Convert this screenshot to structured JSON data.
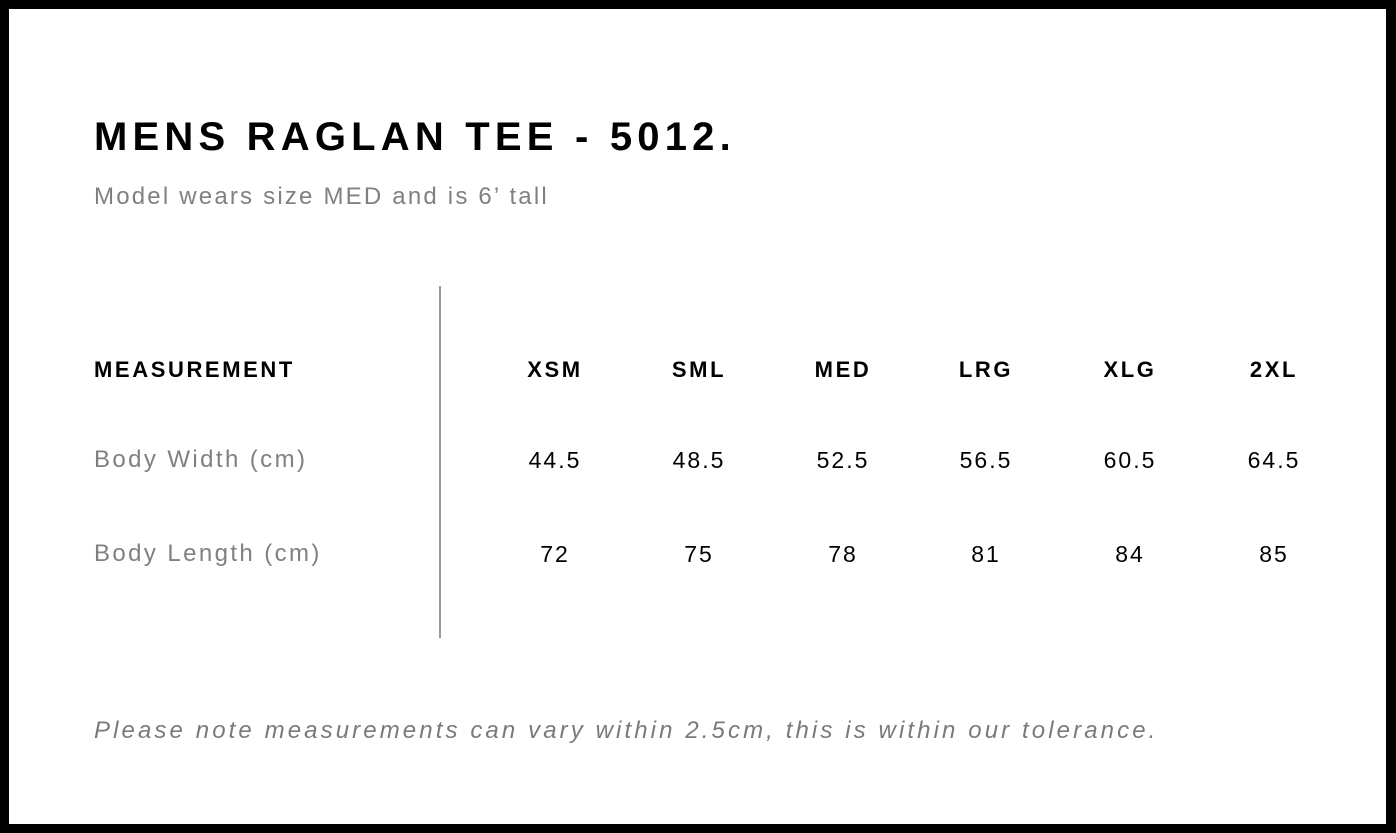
{
  "title": "MENS RAGLAN TEE - 5012.",
  "subtitle": "Model wears size MED and is 6’ tall",
  "table": {
    "header_label": "MEASUREMENT",
    "sizes": [
      "XSM",
      "SML",
      "MED",
      "LRG",
      "XLG",
      "2XL"
    ],
    "rows": [
      {
        "label": "Body Width (cm)",
        "values": [
          "44.5",
          "48.5",
          "52.5",
          "56.5",
          "60.5",
          "64.5"
        ]
      },
      {
        "label": "Body Length (cm)",
        "values": [
          "72",
          "75",
          "78",
          "81",
          "84",
          "85"
        ]
      }
    ]
  },
  "note": "Please note measurements can vary within 2.5cm, this is within our tolerance."
}
